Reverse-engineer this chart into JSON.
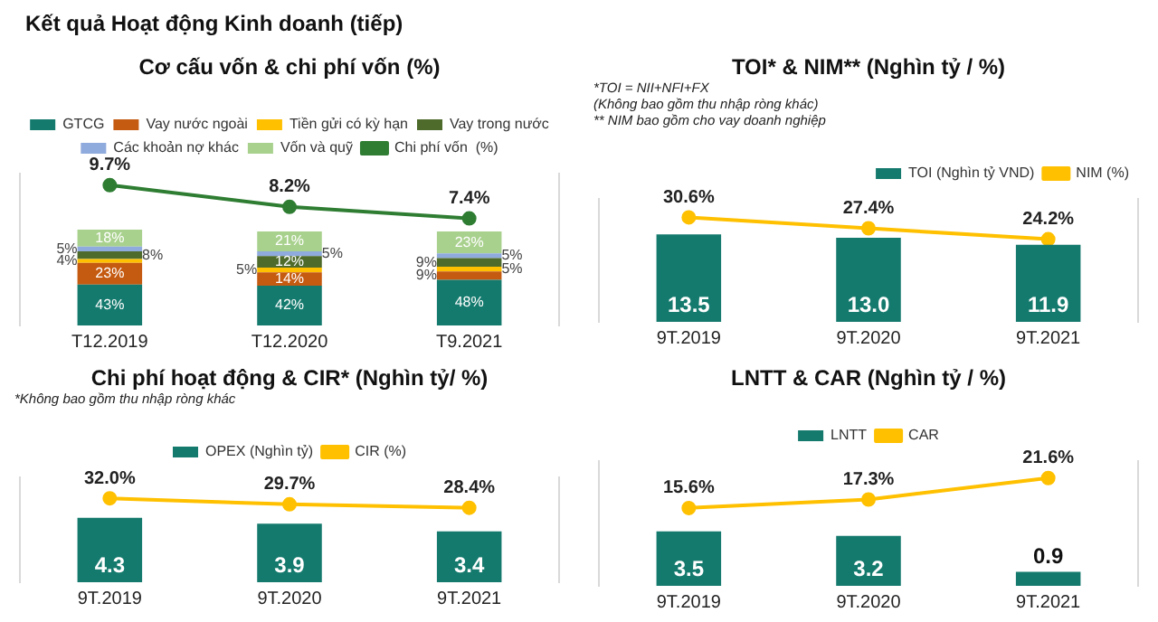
{
  "chart_data": [
    {
      "type": "bar",
      "title": "Cơ cấu vốn & chi phí vốn (%)",
      "annotations": [
        "Kết quả Hoạt động Kinh doanh (tiếp)"
      ],
      "categories": [
        "T12.2019",
        "T12.2020",
        "T9.2021"
      ],
      "stacked": true,
      "legend": "top",
      "grid": false,
      "tick_labels": "x",
      "ylim": [
        0,
        160
      ],
      "y2lim": [
        0,
        10.5
      ],
      "series": [
        {
          "name": "GTCG",
          "color": "#157a6e",
          "values": [
            43,
            42,
            48
          ],
          "value_labels": [
            "43%",
            "42%",
            "48%"
          ]
        },
        {
          "name": "Vay nước ngoài",
          "color": "#c55a11",
          "values": [
            23,
            14,
            9
          ],
          "value_labels": [
            "23%",
            "14%",
            "9%"
          ]
        },
        {
          "name": "Tiền gửi có kỳ hạn",
          "color": "#ffc000",
          "values": [
            4,
            5,
            5
          ],
          "value_labels": [
            "4%",
            "5%",
            "5%"
          ]
        },
        {
          "name": "Vay trong nước",
          "color": "#4e6b2c",
          "values": [
            8,
            12,
            9
          ],
          "value_labels": [
            "8%",
            "12%",
            "9%"
          ]
        },
        {
          "name": "Các khoản nợ khác",
          "color": "#8faadc",
          "values": [
            5,
            5,
            5
          ],
          "value_labels": [
            "5%",
            "5%",
            "5%"
          ]
        },
        {
          "name": "Vốn và quỹ",
          "color": "#a9d18e",
          "values": [
            18,
            21,
            23
          ],
          "value_labels": [
            "18%",
            "21%",
            "23%"
          ]
        },
        {
          "name": "Chi phí vốn  (%)",
          "type": "line",
          "axis": "y2",
          "color": "#2e7d32",
          "values": [
            9.7,
            8.2,
            7.4
          ],
          "value_labels": [
            "9.7%",
            "8.2%",
            "7.4%"
          ]
        }
      ],
      "marker": "circle",
      "line_style": "solid"
    },
    {
      "type": "bar",
      "title": "TOI* & NIM** (Nghìn tỷ / %)",
      "annotations": [
        "*TOI = NII+NFI+FX",
        "(Không bao gồm thu nhập ròng khác)",
        "** NIM bao gồm cho vay doanh nghiệp"
      ],
      "categories": [
        "9T.2019",
        "9T.2020",
        "9T.2021"
      ],
      "legend": "top right",
      "grid": false,
      "tick_labels": "x",
      "ylim": [
        0,
        19
      ],
      "y2lim": [
        0,
        36
      ],
      "series": [
        {
          "name": "TOI (Nghìn tỷ VND)",
          "color": "#157a6e",
          "values": [
            13.5,
            13.0,
            11.9
          ],
          "value_labels": [
            "13.5",
            "13.0",
            "11.9"
          ]
        },
        {
          "name": "NIM (%)",
          "type": "line",
          "axis": "y2",
          "color": "#ffc000",
          "values": [
            30.6,
            27.4,
            24.2
          ],
          "value_labels": [
            "30.6%",
            "27.4%",
            "24.2%"
          ]
        }
      ],
      "marker": "circle",
      "line_style": "solid"
    },
    {
      "type": "bar",
      "title": "Chi phí hoạt động & CIR* (Nghìn tỷ/ %)",
      "annotations": [
        "*Không bao gồm thu nhập ròng khác"
      ],
      "categories": [
        "9T.2019",
        "9T.2020",
        "9T.2021"
      ],
      "legend": "top",
      "grid": false,
      "tick_labels": "x",
      "ylim": [
        0,
        7
      ],
      "y2lim": [
        0,
        40
      ],
      "series": [
        {
          "name": "OPEX (Nghìn tỷ)",
          "color": "#157a6e",
          "values": [
            4.3,
            3.9,
            3.4
          ],
          "value_labels": [
            "4.3",
            "3.9",
            "3.4"
          ]
        },
        {
          "name": "CIR (%)",
          "type": "line",
          "axis": "y2",
          "color": "#ffc000",
          "values": [
            32.0,
            29.7,
            28.4
          ],
          "value_labels": [
            "32.0%",
            "29.7%",
            "28.4%"
          ]
        }
      ],
      "marker": "circle",
      "line_style": "solid"
    },
    {
      "type": "bar",
      "title": "LNTT & CAR (Nghìn tỷ / %)",
      "categories": [
        "9T.2019",
        "9T.2020",
        "9T.2021"
      ],
      "legend": "top",
      "grid": false,
      "tick_labels": "x",
      "ylim": [
        0,
        8
      ],
      "y2lim": [
        0,
        25
      ],
      "series": [
        {
          "name": "LNTT",
          "color": "#157a6e",
          "values": [
            3.5,
            3.2,
            0.9
          ],
          "value_labels": [
            "3.5",
            "3.2",
            "0.9"
          ]
        },
        {
          "name": "CAR",
          "type": "line",
          "axis": "y2",
          "color": "#ffc000",
          "values": [
            15.6,
            17.3,
            21.6
          ],
          "value_labels": [
            "15.6%",
            "17.3%",
            "21.6%"
          ]
        }
      ],
      "marker": "circle",
      "line_style": "solid"
    }
  ]
}
